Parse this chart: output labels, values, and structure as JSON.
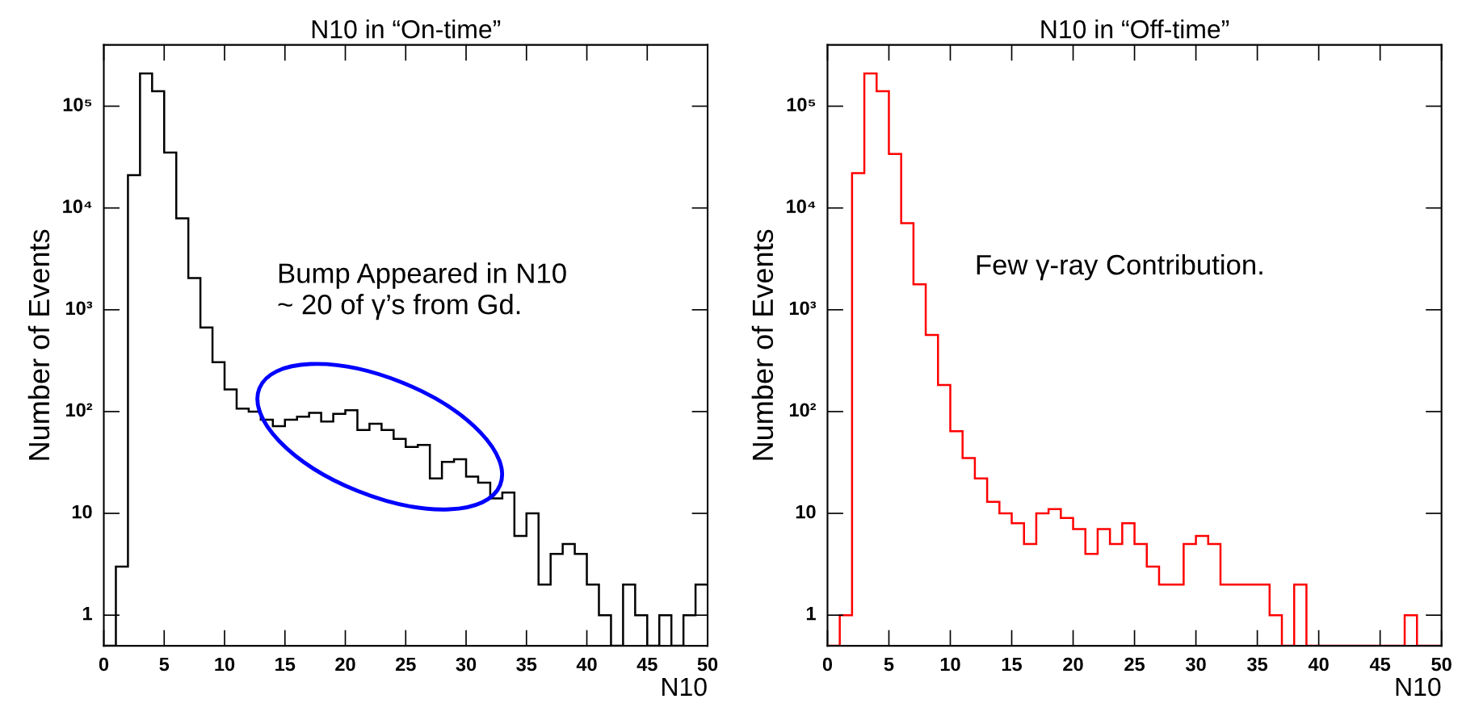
{
  "chart_data": [
    {
      "type": "histogram",
      "title": "N10 in “On-time”",
      "xlabel": "N10",
      "ylabel": "Number of Events",
      "log": true,
      "grid": false,
      "color": "#000000",
      "bins": [
        0,
        1,
        2,
        3,
        4,
        5,
        6,
        7,
        8,
        9,
        10,
        11,
        12,
        13,
        14,
        15,
        16,
        17,
        18,
        19,
        20,
        21,
        22,
        23,
        24,
        25,
        26,
        27,
        28,
        29,
        30,
        31,
        32,
        33,
        34,
        35,
        36,
        37,
        38,
        39,
        40,
        41,
        42,
        43,
        44,
        45,
        46,
        47,
        48,
        49,
        50
      ],
      "values": [
        null,
        3,
        21000,
        210000,
        140000,
        35000,
        7900,
        2050,
        670,
        305,
        165,
        107,
        100,
        83,
        72,
        83,
        89,
        97,
        80,
        95,
        103,
        66,
        76,
        66,
        54,
        45,
        47,
        22,
        32,
        34,
        23,
        20,
        14,
        16,
        6,
        10,
        2,
        4,
        5,
        4,
        2,
        1,
        null,
        2,
        1,
        null,
        1,
        null,
        1,
        2
      ],
      "xlim": [
        0,
        50
      ],
      "ylim": [
        0.5,
        400000
      ],
      "xticks": [
        0,
        5,
        10,
        15,
        20,
        25,
        30,
        35,
        40,
        45,
        50
      ],
      "yticks": [
        1,
        10,
        {
          "value": 100,
          "label": "10²"
        },
        {
          "value": 1000,
          "label": "10³"
        },
        {
          "value": 10000,
          "label": "10⁴"
        },
        {
          "value": 100000,
          "label": "10⁵"
        }
      ],
      "annotations": [
        "Bump Appeared in N10\n~ 20 of γ’s from Gd."
      ]
    },
    {
      "type": "histogram",
      "title": "N10 in “Off-time”",
      "xlabel": "N10",
      "ylabel": "Number of Events",
      "log": true,
      "grid": false,
      "color": "#ff0000",
      "bins": [
        0,
        1,
        2,
        3,
        4,
        5,
        6,
        7,
        8,
        9,
        10,
        11,
        12,
        13,
        14,
        15,
        16,
        17,
        18,
        19,
        20,
        21,
        22,
        23,
        24,
        25,
        26,
        27,
        28,
        29,
        30,
        31,
        32,
        33,
        34,
        35,
        36,
        37,
        38,
        39,
        40,
        41,
        42,
        43,
        44,
        45,
        46,
        47,
        48,
        49,
        50
      ],
      "values": [
        null,
        1,
        22000,
        210000,
        140000,
        34000,
        7100,
        1780,
        565,
        182,
        64,
        35,
        22,
        13,
        10,
        8,
        5,
        10,
        11,
        9,
        7,
        4,
        7,
        5,
        8,
        5,
        3,
        2,
        2,
        5,
        6,
        5,
        2,
        2,
        2,
        2,
        1,
        null,
        2,
        null,
        null,
        null,
        null,
        null,
        null,
        null,
        null,
        1,
        null,
        null
      ],
      "xlim": [
        0,
        50
      ],
      "ylim": [
        0.5,
        400000
      ],
      "xticks": [
        0,
        5,
        10,
        15,
        20,
        25,
        30,
        35,
        40,
        45,
        50
      ],
      "yticks": [
        1,
        10,
        {
          "value": 100,
          "label": "10²"
        },
        {
          "value": 1000,
          "label": "10³"
        },
        {
          "value": 10000,
          "label": "10⁴"
        },
        {
          "value": 100000,
          "label": "10⁵"
        }
      ],
      "annotations": [
        "Few γ-ray Contribution."
      ]
    }
  ]
}
